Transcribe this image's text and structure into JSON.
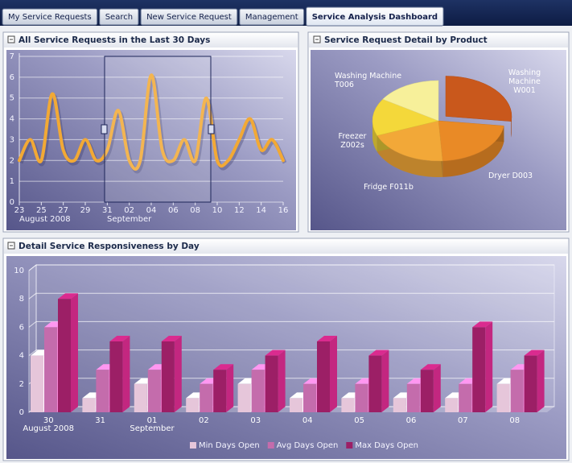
{
  "tabs": [
    "My Service Requests",
    "Search",
    "New Service Request",
    "Management",
    "Service Analysis Dashboard"
  ],
  "active_tab": 4,
  "chart_data": [
    {
      "type": "line",
      "title": "All Service Requests in the Last 30 Days",
      "categories": [
        "23",
        null,
        "25",
        null,
        "27",
        null,
        "29",
        null,
        "31",
        null,
        "02",
        null,
        "04",
        null,
        "06",
        null,
        "08",
        null,
        "10",
        null,
        "12",
        null,
        "14",
        null,
        "16"
      ],
      "x_sublabels": [
        "August 2008",
        null,
        null,
        null,
        null,
        null,
        null,
        null,
        null,
        null,
        "September",
        null,
        null,
        null,
        null,
        null,
        null,
        null,
        null,
        null,
        null,
        null,
        null,
        null,
        null
      ],
      "values": [
        2,
        3,
        2,
        5.2,
        2.5,
        2,
        3,
        2,
        2.5,
        4.4,
        2,
        2,
        6.1,
        2.5,
        2,
        3,
        2,
        5,
        2,
        2,
        3,
        4,
        2.5,
        3,
        2
      ],
      "color": "#f2a935",
      "ylim": [
        0,
        7
      ],
      "yticks": [
        0,
        1,
        2,
        3,
        4,
        5,
        6,
        7
      ],
      "grid": true
    },
    {
      "type": "pie",
      "title": "Service Request Detail by Product",
      "categories": [
        "Washing Machine W001",
        "Dryer D003",
        "Fridge F011b",
        "Freezer Z002s",
        "Washing Machine T006"
      ],
      "values": [
        27,
        22,
        20,
        15,
        16
      ],
      "colors": [
        "#c9581c",
        "#e98a26",
        "#f2a838",
        "#f4d83a",
        "#f7f09a"
      ]
    },
    {
      "type": "bar",
      "title": "Detail Service Responsiveness by Day",
      "categories": [
        "30",
        "31",
        "01",
        "02",
        "03",
        "04",
        "05",
        "06",
        "07",
        "08"
      ],
      "x_sublabels": [
        "August 2008",
        null,
        "September",
        null,
        null,
        null,
        null,
        null,
        null,
        null
      ],
      "series": [
        {
          "name": "Min Days Open",
          "color": "#e6c6da",
          "values": [
            4,
            1,
            2,
            1,
            2,
            1,
            1,
            1,
            1,
            2
          ]
        },
        {
          "name": "Avg Days Open",
          "color": "#c46cac",
          "values": [
            6,
            3,
            3,
            2,
            3,
            2,
            2,
            2,
            2,
            3
          ]
        },
        {
          "name": "Max Days Open",
          "color": "#9c1f66",
          "values": [
            8,
            5,
            5,
            3,
            4,
            5,
            4,
            3,
            6,
            4
          ]
        }
      ],
      "ylim": [
        0,
        10
      ],
      "yticks": [
        0,
        2,
        4,
        6,
        8,
        10
      ],
      "grid": true,
      "legend": "bottom"
    }
  ]
}
